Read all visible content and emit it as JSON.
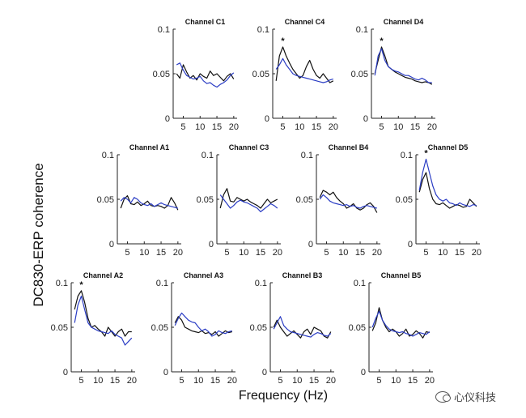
{
  "figure": {
    "ylabel": "DC830-ERP coherence",
    "xlabel": "Frequency (Hz)",
    "watermark": "心仪科技"
  },
  "chart_data": [
    {
      "type": "line",
      "title": "Channel C1",
      "x": [
        3,
        4,
        5,
        6,
        7,
        8,
        9,
        10,
        11,
        12,
        13,
        14,
        15,
        16,
        17,
        18,
        19,
        20
      ],
      "ylim": [
        0,
        0.1
      ],
      "xlim": [
        2,
        21
      ],
      "xticks": [
        5,
        10,
        15,
        20
      ],
      "yticks": [
        0,
        0.05,
        0.1
      ],
      "ytick_labels": [
        "0",
        "0.05",
        "0.1"
      ],
      "xtick_labels": [
        "5",
        "10",
        "15",
        "20"
      ],
      "asterisk": null,
      "series": [
        {
          "name": "black",
          "color": "#111111",
          "values": [
            0.05,
            0.045,
            0.06,
            0.052,
            0.045,
            0.048,
            0.043,
            0.05,
            0.047,
            0.045,
            0.053,
            0.048,
            0.05,
            0.046,
            0.042,
            0.047,
            0.05,
            0.044
          ]
        },
        {
          "name": "blue",
          "color": "#2a3cc4",
          "values": [
            0.06,
            0.062,
            0.054,
            0.048,
            0.046,
            0.044,
            0.045,
            0.047,
            0.042,
            0.039,
            0.04,
            0.037,
            0.035,
            0.038,
            0.04,
            0.043,
            0.048,
            0.051
          ]
        }
      ]
    },
    {
      "type": "line",
      "title": "Channel C4",
      "x": [
        3,
        4,
        5,
        6,
        7,
        8,
        9,
        10,
        11,
        12,
        13,
        14,
        15,
        16,
        17,
        18,
        19,
        20
      ],
      "ylim": [
        0,
        0.1
      ],
      "xlim": [
        2,
        21
      ],
      "xticks": [
        5,
        10,
        15,
        20
      ],
      "yticks": [
        0,
        0.05,
        0.1
      ],
      "ytick_labels": [
        "0",
        "0.05",
        "0.1"
      ],
      "xtick_labels": [
        "5",
        "10",
        "15",
        "20"
      ],
      "asterisk": 5,
      "series": [
        {
          "name": "black",
          "color": "#111111",
          "values": [
            0.042,
            0.07,
            0.08,
            0.07,
            0.062,
            0.055,
            0.05,
            0.045,
            0.048,
            0.058,
            0.065,
            0.055,
            0.048,
            0.045,
            0.05,
            0.045,
            0.04,
            0.042
          ]
        },
        {
          "name": "blue",
          "color": "#2a3cc4",
          "values": [
            0.055,
            0.06,
            0.067,
            0.06,
            0.055,
            0.05,
            0.048,
            0.047,
            0.046,
            0.045,
            0.044,
            0.043,
            0.042,
            0.041,
            0.04,
            0.041,
            0.043,
            0.044
          ]
        }
      ]
    },
    {
      "type": "line",
      "title": "Channel D4",
      "x": [
        3,
        4,
        5,
        6,
        7,
        8,
        9,
        10,
        11,
        12,
        13,
        14,
        15,
        16,
        17,
        18,
        19,
        20
      ],
      "ylim": [
        0,
        0.1
      ],
      "xlim": [
        2,
        21
      ],
      "xticks": [
        5,
        10,
        15,
        20
      ],
      "yticks": [
        0,
        0.05,
        0.1
      ],
      "ytick_labels": [
        "0",
        "0.05",
        "0.1"
      ],
      "xtick_labels": [
        "5",
        "10",
        "15",
        "20"
      ],
      "asterisk": 5,
      "series": [
        {
          "name": "black",
          "color": "#111111",
          "values": [
            0.05,
            0.065,
            0.08,
            0.07,
            0.058,
            0.055,
            0.052,
            0.05,
            0.048,
            0.046,
            0.045,
            0.044,
            0.042,
            0.041,
            0.04,
            0.041,
            0.04,
            0.038
          ]
        },
        {
          "name": "blue",
          "color": "#2a3cc4",
          "values": [
            0.048,
            0.07,
            0.078,
            0.065,
            0.058,
            0.055,
            0.053,
            0.052,
            0.05,
            0.048,
            0.048,
            0.046,
            0.044,
            0.043,
            0.045,
            0.043,
            0.04,
            0.04
          ]
        }
      ]
    },
    {
      "type": "line",
      "title": "Channel A1",
      "x": [
        3,
        4,
        5,
        6,
        7,
        8,
        9,
        10,
        11,
        12,
        13,
        14,
        15,
        16,
        17,
        18,
        19,
        20
      ],
      "ylim": [
        0,
        0.1
      ],
      "xlim": [
        2,
        21
      ],
      "xticks": [
        5,
        10,
        15,
        20
      ],
      "yticks": [
        0,
        0.05,
        0.1
      ],
      "ytick_labels": [
        "0",
        "0.05",
        "0.1"
      ],
      "xtick_labels": [
        "5",
        "10",
        "15",
        "20"
      ],
      "asterisk": null,
      "series": [
        {
          "name": "black",
          "color": "#111111",
          "values": [
            0.04,
            0.05,
            0.054,
            0.045,
            0.044,
            0.047,
            0.043,
            0.045,
            0.048,
            0.043,
            0.042,
            0.043,
            0.042,
            0.04,
            0.043,
            0.052,
            0.046,
            0.038
          ]
        },
        {
          "name": "blue",
          "color": "#2a3cc4",
          "values": [
            0.048,
            0.052,
            0.05,
            0.046,
            0.052,
            0.05,
            0.046,
            0.044,
            0.043,
            0.045,
            0.042,
            0.044,
            0.046,
            0.044,
            0.043,
            0.042,
            0.041,
            0.04
          ]
        }
      ]
    },
    {
      "type": "line",
      "title": "Channel C3",
      "x": [
        3,
        4,
        5,
        6,
        7,
        8,
        9,
        10,
        11,
        12,
        13,
        14,
        15,
        16,
        17,
        18,
        19,
        20
      ],
      "ylim": [
        0,
        0.1
      ],
      "xlim": [
        2,
        21
      ],
      "xticks": [
        5,
        10,
        15,
        20
      ],
      "yticks": [
        0,
        0.05,
        0.1
      ],
      "ytick_labels": [
        "0",
        "0.05",
        "0.1"
      ],
      "xtick_labels": [
        "5",
        "10",
        "15",
        "20"
      ],
      "asterisk": null,
      "series": [
        {
          "name": "black",
          "color": "#111111",
          "values": [
            0.04,
            0.055,
            0.062,
            0.048,
            0.047,
            0.052,
            0.05,
            0.048,
            0.05,
            0.047,
            0.045,
            0.043,
            0.04,
            0.045,
            0.05,
            0.046,
            0.048,
            0.05
          ]
        },
        {
          "name": "blue",
          "color": "#2a3cc4",
          "values": [
            0.055,
            0.05,
            0.045,
            0.04,
            0.043,
            0.047,
            0.049,
            0.047,
            0.046,
            0.044,
            0.042,
            0.04,
            0.036,
            0.039,
            0.042,
            0.045,
            0.043,
            0.04
          ]
        }
      ]
    },
    {
      "type": "line",
      "title": "Channel B4",
      "x": [
        3,
        4,
        5,
        6,
        7,
        8,
        9,
        10,
        11,
        12,
        13,
        14,
        15,
        16,
        17,
        18,
        19,
        20
      ],
      "ylim": [
        0,
        0.1
      ],
      "xlim": [
        2,
        21
      ],
      "xticks": [
        5,
        10,
        15,
        20
      ],
      "yticks": [
        0,
        0.05,
        0.1
      ],
      "ytick_labels": [
        "0",
        "0.05",
        "0.1"
      ],
      "xtick_labels": [
        "5",
        "10",
        "15",
        "20"
      ],
      "asterisk": null,
      "series": [
        {
          "name": "black",
          "color": "#111111",
          "values": [
            0.052,
            0.06,
            0.058,
            0.055,
            0.058,
            0.052,
            0.048,
            0.045,
            0.04,
            0.042,
            0.045,
            0.04,
            0.038,
            0.04,
            0.044,
            0.046,
            0.042,
            0.035
          ]
        },
        {
          "name": "blue",
          "color": "#2a3cc4",
          "values": [
            0.05,
            0.055,
            0.052,
            0.048,
            0.046,
            0.045,
            0.044,
            0.043,
            0.044,
            0.042,
            0.043,
            0.041,
            0.04,
            0.042,
            0.043,
            0.042,
            0.041,
            0.04
          ]
        }
      ]
    },
    {
      "type": "line",
      "title": "Channel D5",
      "x": [
        3,
        4,
        5,
        6,
        7,
        8,
        9,
        10,
        11,
        12,
        13,
        14,
        15,
        16,
        17,
        18,
        19,
        20
      ],
      "ylim": [
        0,
        0.1
      ],
      "xlim": [
        2,
        21
      ],
      "xticks": [
        5,
        10,
        15,
        20
      ],
      "yticks": [
        0,
        0.05,
        0.1
      ],
      "ytick_labels": [
        "0",
        "0.05",
        "0.1"
      ],
      "xtick_labels": [
        "5",
        "10",
        "15",
        "20"
      ],
      "asterisk": 5,
      "series": [
        {
          "name": "black",
          "color": "#111111",
          "values": [
            0.058,
            0.072,
            0.08,
            0.062,
            0.05,
            0.045,
            0.044,
            0.046,
            0.043,
            0.04,
            0.042,
            0.044,
            0.043,
            0.041,
            0.042,
            0.05,
            0.046,
            0.042
          ]
        },
        {
          "name": "blue",
          "color": "#2a3cc4",
          "values": [
            0.06,
            0.08,
            0.095,
            0.08,
            0.065,
            0.055,
            0.05,
            0.048,
            0.05,
            0.046,
            0.045,
            0.043,
            0.046,
            0.044,
            0.043,
            0.042,
            0.044,
            0.043
          ]
        }
      ]
    },
    {
      "type": "line",
      "title": "Channel A2",
      "x": [
        3,
        4,
        5,
        6,
        7,
        8,
        9,
        10,
        11,
        12,
        13,
        14,
        15,
        16,
        17,
        18,
        19,
        20
      ],
      "ylim": [
        0,
        0.1
      ],
      "xlim": [
        2,
        21
      ],
      "xticks": [
        5,
        10,
        15,
        20
      ],
      "yticks": [
        0,
        0.05,
        0.1
      ],
      "ytick_labels": [
        "0",
        "0.05",
        "0.1"
      ],
      "xtick_labels": [
        "5",
        "10",
        "15",
        "20"
      ],
      "asterisk": 5,
      "series": [
        {
          "name": "black",
          "color": "#111111",
          "values": [
            0.07,
            0.085,
            0.091,
            0.078,
            0.06,
            0.05,
            0.052,
            0.048,
            0.045,
            0.04,
            0.05,
            0.045,
            0.04,
            0.045,
            0.048,
            0.04,
            0.045,
            0.045
          ]
        },
        {
          "name": "blue",
          "color": "#2a3cc4",
          "values": [
            0.055,
            0.075,
            0.085,
            0.07,
            0.055,
            0.05,
            0.048,
            0.046,
            0.045,
            0.044,
            0.043,
            0.046,
            0.042,
            0.04,
            0.038,
            0.03,
            0.034,
            0.038
          ]
        }
      ]
    },
    {
      "type": "line",
      "title": "Channel A3",
      "x": [
        3,
        4,
        5,
        6,
        7,
        8,
        9,
        10,
        11,
        12,
        13,
        14,
        15,
        16,
        17,
        18,
        19,
        20
      ],
      "ylim": [
        0,
        0.1
      ],
      "xlim": [
        2,
        21
      ],
      "xticks": [
        5,
        10,
        15,
        20
      ],
      "yticks": [
        0,
        0.05,
        0.1
      ],
      "ytick_labels": [
        "0",
        "0.05",
        "0.1"
      ],
      "xtick_labels": [
        "5",
        "10",
        "15",
        "20"
      ],
      "asterisk": null,
      "series": [
        {
          "name": "black",
          "color": "#111111",
          "values": [
            0.055,
            0.062,
            0.058,
            0.05,
            0.048,
            0.046,
            0.045,
            0.044,
            0.046,
            0.043,
            0.044,
            0.042,
            0.045,
            0.04,
            0.043,
            0.046,
            0.044,
            0.045
          ]
        },
        {
          "name": "blue",
          "color": "#2a3cc4",
          "values": [
            0.052,
            0.06,
            0.066,
            0.062,
            0.058,
            0.056,
            0.055,
            0.05,
            0.046,
            0.048,
            0.045,
            0.04,
            0.042,
            0.046,
            0.044,
            0.043,
            0.045,
            0.046
          ]
        }
      ]
    },
    {
      "type": "line",
      "title": "Channel B3",
      "x": [
        3,
        4,
        5,
        6,
        7,
        8,
        9,
        10,
        11,
        12,
        13,
        14,
        15,
        16,
        17,
        18,
        19,
        20
      ],
      "ylim": [
        0,
        0.1
      ],
      "xlim": [
        2,
        21
      ],
      "xticks": [
        5,
        10,
        15,
        20
      ],
      "yticks": [
        0,
        0.05,
        0.1
      ],
      "ytick_labels": [
        "0",
        "0.05",
        "0.1"
      ],
      "xtick_labels": [
        "5",
        "10",
        "15",
        "20"
      ],
      "asterisk": null,
      "series": [
        {
          "name": "black",
          "color": "#111111",
          "values": [
            0.05,
            0.058,
            0.05,
            0.045,
            0.04,
            0.043,
            0.046,
            0.042,
            0.038,
            0.045,
            0.048,
            0.042,
            0.05,
            0.048,
            0.046,
            0.04,
            0.038,
            0.045
          ]
        },
        {
          "name": "blue",
          "color": "#2a3cc4",
          "values": [
            0.048,
            0.055,
            0.062,
            0.052,
            0.048,
            0.045,
            0.044,
            0.043,
            0.042,
            0.041,
            0.04,
            0.039,
            0.042,
            0.044,
            0.043,
            0.041,
            0.04,
            0.043
          ]
        }
      ]
    },
    {
      "type": "line",
      "title": "Channel B5",
      "x": [
        3,
        4,
        5,
        6,
        7,
        8,
        9,
        10,
        11,
        12,
        13,
        14,
        15,
        16,
        17,
        18,
        19,
        20
      ],
      "ylim": [
        0,
        0.1
      ],
      "xlim": [
        2,
        21
      ],
      "xticks": [
        5,
        10,
        15,
        20
      ],
      "yticks": [
        0,
        0.05,
        0.1
      ],
      "ytick_labels": [
        "0",
        "0.05",
        "0.1"
      ],
      "xtick_labels": [
        "5",
        "10",
        "15",
        "20"
      ],
      "asterisk": null,
      "series": [
        {
          "name": "black",
          "color": "#111111",
          "values": [
            0.046,
            0.055,
            0.072,
            0.058,
            0.05,
            0.045,
            0.048,
            0.045,
            0.04,
            0.043,
            0.048,
            0.04,
            0.042,
            0.046,
            0.043,
            0.038,
            0.045,
            0.044
          ]
        },
        {
          "name": "blue",
          "color": "#2a3cc4",
          "values": [
            0.05,
            0.06,
            0.068,
            0.058,
            0.052,
            0.048,
            0.046,
            0.045,
            0.044,
            0.045,
            0.043,
            0.042,
            0.04,
            0.042,
            0.044,
            0.043,
            0.042,
            0.045
          ]
        }
      ]
    }
  ]
}
